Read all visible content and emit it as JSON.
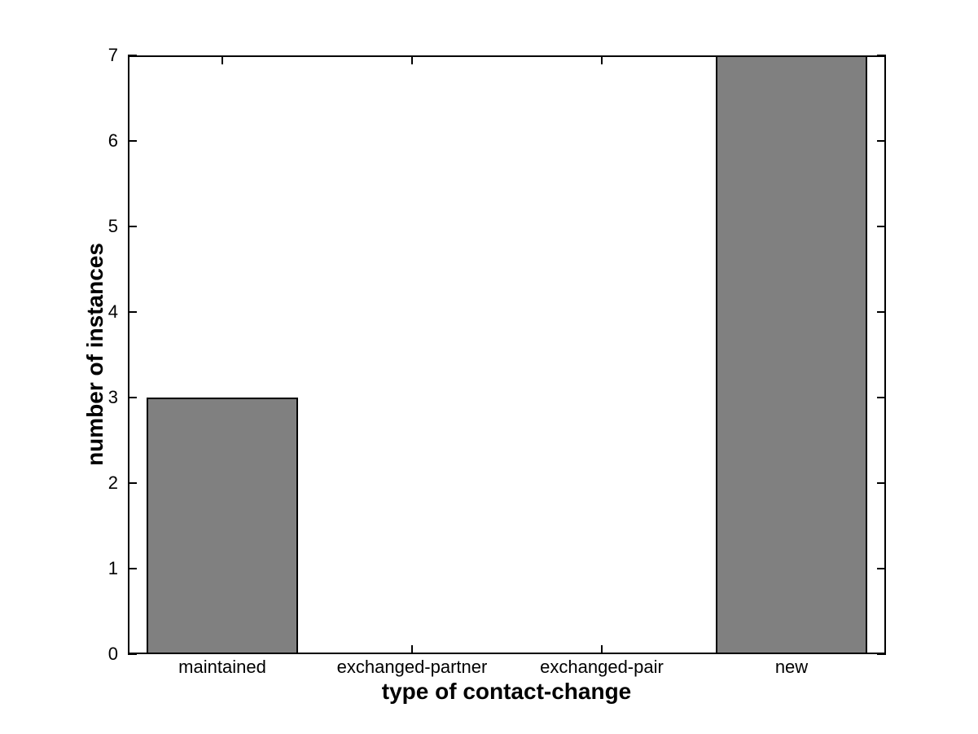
{
  "figure": {
    "background": "#ffffff"
  },
  "chart_data": {
    "type": "bar",
    "title": "",
    "categories": [
      "maintained",
      "exchanged-partner",
      "exchanged-pair",
      "new"
    ],
    "values": [
      3,
      0,
      0,
      7
    ],
    "xlabel": "type of contact-change",
    "ylabel": "number of instances",
    "ylim": [
      0,
      7
    ],
    "yticks": [
      0,
      1,
      2,
      3,
      4,
      5,
      6,
      7
    ],
    "bar_width_fraction": 0.8,
    "bar_color": "#808080",
    "bar_edge_color": "#000000",
    "axis_color": "#000000",
    "tick_direction": "in",
    "grid": false,
    "legend": false
  }
}
